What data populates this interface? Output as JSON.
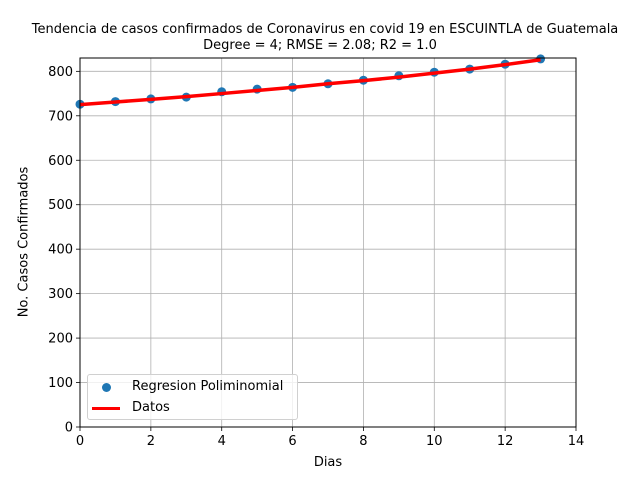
{
  "chart_data": {
    "type": "scatter",
    "title": "Tendencia de casos confirmados de Coronavirus en covid 19 en ESCUINTLA de Guatemala",
    "subtitle": "Degree = 4; RMSE = 2.08; R2 = 1.0",
    "xlabel": "Dias",
    "ylabel": "No. Casos Confirmados",
    "xlim": [
      0,
      14
    ],
    "ylim": [
      0,
      830
    ],
    "xticks": [
      0,
      2,
      4,
      6,
      8,
      10,
      12,
      14
    ],
    "yticks": [
      0,
      100,
      200,
      300,
      400,
      500,
      600,
      700,
      800
    ],
    "grid": true,
    "legend_position": "bottom-left",
    "series": [
      {
        "name": "Regresion Poliminomial",
        "kind": "scatter",
        "color": "#1f77b4",
        "x": [
          0,
          1,
          2,
          3,
          4,
          5,
          6,
          7,
          8,
          9,
          10,
          11,
          12,
          13
        ],
        "y": [
          726,
          732,
          738,
          742,
          754,
          760,
          764,
          772,
          780,
          790,
          798,
          805,
          816,
          828
        ]
      },
      {
        "name": "Datos",
        "kind": "line",
        "color": "#ff0000",
        "x": [
          0,
          1,
          2,
          3,
          4,
          5,
          6,
          7,
          8,
          9,
          10,
          11,
          12,
          13
        ],
        "y": [
          725,
          731,
          737,
          743,
          750,
          757,
          764,
          772,
          779,
          787,
          796,
          805,
          815,
          826
        ]
      }
    ]
  }
}
